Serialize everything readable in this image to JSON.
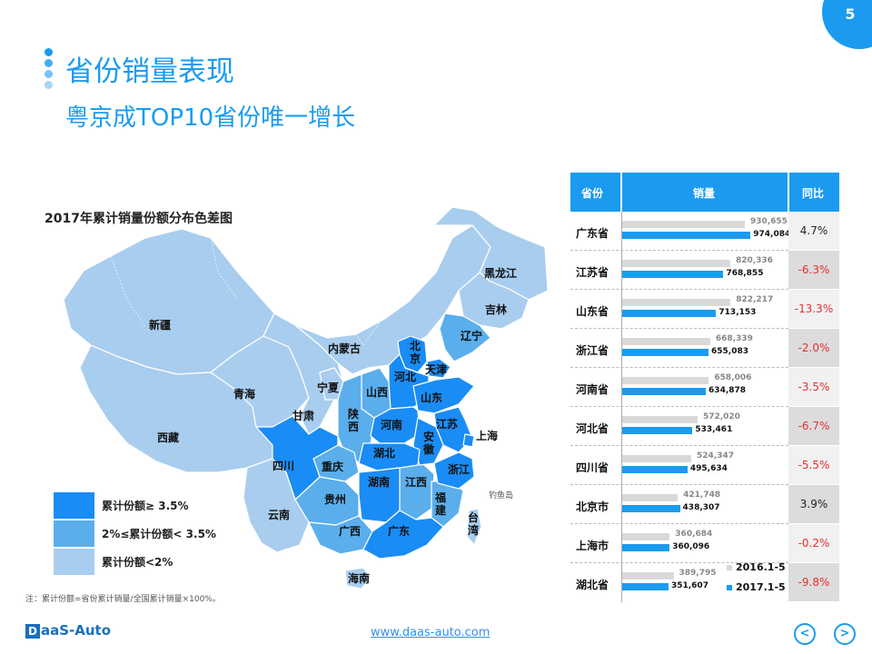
{
  "page": {
    "number": "5"
  },
  "header": {
    "title": "省份销量表现",
    "subtitle": "粤京成TOP10省份唯一增长"
  },
  "map": {
    "title": "2017年累计销量份额分布色差图",
    "colors": {
      "high": "#1a8cf5",
      "mid": "#5aaeec",
      "low": "#a9cdee"
    },
    "labels": {
      "xinjiang": "新疆",
      "xizang": "西藏",
      "qinghai": "青海",
      "gansu": "甘肃",
      "neimenggu": "内蒙古",
      "ningxia": "宁夏",
      "heilongjiang": "黑龙江",
      "jilin": "吉林",
      "liaoning": "辽宁",
      "beijing": "北京",
      "tianjin": "天津",
      "hebei": "河北",
      "shanxi": "山西",
      "shandong": "山东",
      "shaanxi": "陕西",
      "henan": "河南",
      "jiangsu": "江苏",
      "shanghai": "上海",
      "anhui": "安徽",
      "hubei": "湖北",
      "sichuan": "四川",
      "chongqing": "重庆",
      "zhejiang": "浙江",
      "hunan": "湖南",
      "jiangxi": "江西",
      "guizhou": "贵州",
      "fujian": "福建",
      "taiwan": "台湾",
      "yunnan": "云南",
      "guangxi": "广西",
      "guangdong": "广东",
      "hainan": "海南",
      "diaoyudao": "钓鱼岛"
    },
    "legend": [
      {
        "label": "累计份额≥ 3.5%",
        "color": "#1a8cf5"
      },
      {
        "label": "2%≤累计份额< 3.5%",
        "color": "#5aaeec"
      },
      {
        "label": "累计份额<2%",
        "color": "#a9cdee"
      }
    ],
    "note": "注：累计份额=省份累计销量/全国累计销量×100%。"
  },
  "table": {
    "headers": {
      "province": "省份",
      "sales": "销量",
      "yoy": "同比"
    },
    "legend": {
      "prev": "2016.1-5",
      "cur": "2017.1-5"
    },
    "colors": {
      "prev_bar": "#d9d9d9",
      "cur_bar": "#1a9bf0",
      "negative": "#e53030"
    },
    "rows": [
      {
        "province": "广东省",
        "prev": "930,655",
        "cur": "974,084",
        "yoy": "4.7%"
      },
      {
        "province": "江苏省",
        "prev": "820,336",
        "cur": "768,855",
        "yoy": "-6.3%"
      },
      {
        "province": "山东省",
        "prev": "822,217",
        "cur": "713,153",
        "yoy": "-13.3%"
      },
      {
        "province": "浙江省",
        "prev": "668,339",
        "cur": "655,083",
        "yoy": "-2.0%"
      },
      {
        "province": "河南省",
        "prev": "658,006",
        "cur": "634,878",
        "yoy": "-3.5%"
      },
      {
        "province": "河北省",
        "prev": "572,020",
        "cur": "533,461",
        "yoy": "-6.7%"
      },
      {
        "province": "四川省",
        "prev": "524,347",
        "cur": "495,634",
        "yoy": "-5.5%"
      },
      {
        "province": "北京市",
        "prev": "421,748",
        "cur": "438,307",
        "yoy": "3.9%"
      },
      {
        "province": "上海市",
        "prev": "360,684",
        "cur": "360,096",
        "yoy": "-0.2%"
      },
      {
        "province": "湖北省",
        "prev": "389,795",
        "cur": "351,607",
        "yoy": "-9.8%"
      }
    ]
  },
  "footer": {
    "logo": "DaaS-Auto",
    "logo_mark": "D",
    "logo_rest": "aaS-Auto",
    "url": "www.daas-auto.com"
  }
}
